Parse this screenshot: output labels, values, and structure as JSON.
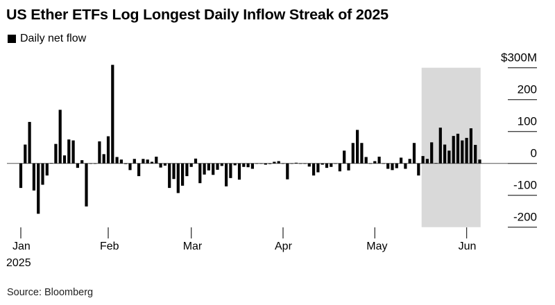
{
  "chart_data": {
    "type": "bar",
    "title": "US Ether ETFs Log Longest Daily Inflow Streak of 2025",
    "legend": [
      {
        "label": "Daily net flow",
        "color": "#000000"
      }
    ],
    "legend_placement": "top-left",
    "xlabel": "",
    "ylabel": "",
    "unit": "$M",
    "ylim": [
      -200,
      300
    ],
    "yticks": [
      300,
      200,
      100,
      0,
      -100,
      -200
    ],
    "ytick_labels": [
      "$300M",
      "200",
      "100",
      "0",
      "-100",
      "-200"
    ],
    "xticks": [
      {
        "label": "Jan",
        "sublabel": "2025",
        "index": 0
      },
      {
        "label": "Feb",
        "index": 20
      },
      {
        "label": "Mar",
        "index": 39
      },
      {
        "label": "Apr",
        "index": 60
      },
      {
        "label": "May",
        "index": 81
      },
      {
        "label": "Jun",
        "index": 102
      }
    ],
    "highlight_range": [
      91.7,
      105.2
    ],
    "highlight_color": "#d9d9d9",
    "bar_color": "#000000",
    "values": [
      -77,
      59,
      130,
      -85,
      -158,
      -67,
      -38,
      1,
      61,
      168,
      25,
      75,
      72,
      -14,
      10,
      -135,
      0,
      -1,
      69,
      29,
      85,
      309,
      20,
      12,
      -2,
      -21,
      14,
      -40,
      14,
      12,
      5,
      21,
      -13,
      -7,
      -77,
      -49,
      -93,
      -70,
      -40,
      -11,
      15,
      -62,
      -35,
      -22,
      -36,
      -20,
      -8,
      -72,
      -46,
      -6,
      -51,
      -11,
      -12,
      -17,
      -1,
      -1,
      -4,
      -2,
      5,
      7,
      -1,
      -50,
      -1,
      2,
      -1,
      -1,
      -10,
      -38,
      -28,
      -4,
      -14,
      -11,
      0,
      -25,
      40,
      -22,
      64,
      105,
      64,
      20,
      -1,
      7,
      21,
      0,
      -17,
      -21,
      -15,
      18,
      -17,
      14,
      64,
      -38,
      23,
      14,
      66,
      1,
      112,
      59,
      40,
      86,
      93,
      72,
      80,
      110,
      58,
      12
    ]
  },
  "source": "Source: Bloomberg"
}
